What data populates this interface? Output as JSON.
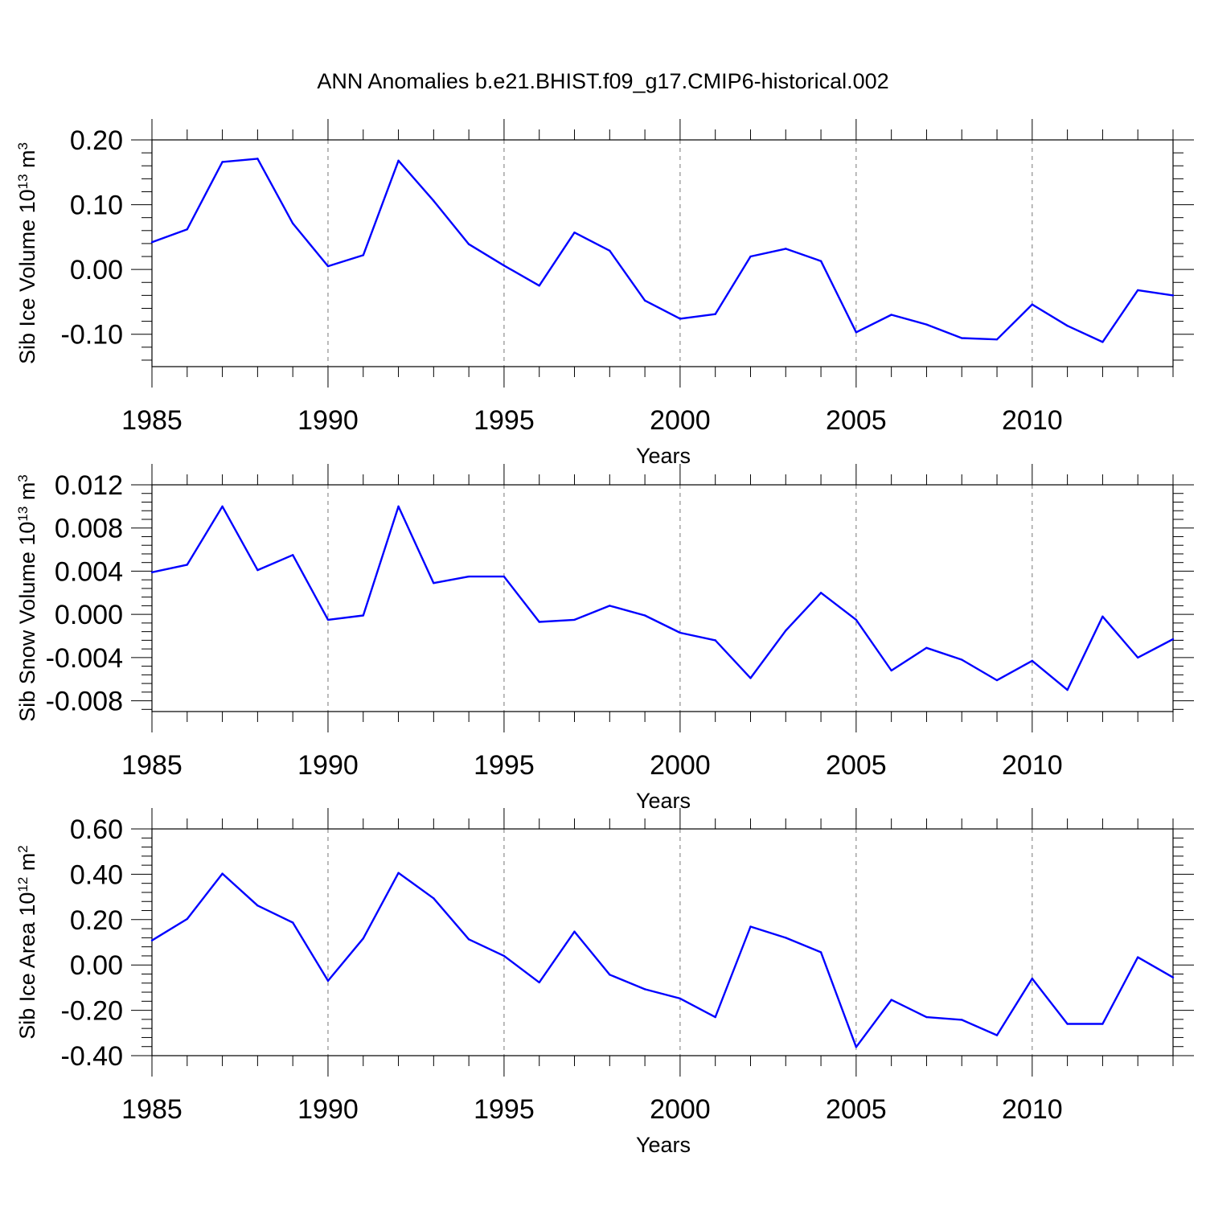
{
  "figure": {
    "title": "ANN Anomalies b.e21.BHIST.f09_g17.CMIP6-historical.002"
  },
  "chart_data": [
    {
      "type": "line",
      "xlabel": "Years",
      "ylabel": "Sib Ice Volume 10",
      "ylabel_exp": "13",
      "ylabel_unit": " m",
      "ylabel_unit_exp": "3",
      "xlim": [
        1985,
        2014
      ],
      "ylim": [
        -0.15,
        0.2
      ],
      "x_ticks": [
        1985,
        1990,
        1995,
        2000,
        2005,
        2010
      ],
      "y_ticks": [
        0.2,
        0.1,
        0.0,
        -0.1
      ],
      "y_tick_labels": [
        "0.20",
        "0.10",
        "0.00",
        "-0.10"
      ],
      "x_gridlines": [
        1990,
        1995,
        2000,
        2005,
        2010
      ],
      "line_color": "#0000ff",
      "x": [
        1985,
        1986,
        1987,
        1988,
        1989,
        1990,
        1991,
        1992,
        1993,
        1994,
        1995,
        1996,
        1997,
        1998,
        1999,
        2000,
        2001,
        2002,
        2003,
        2004,
        2005,
        2006,
        2007,
        2008,
        2009,
        2010,
        2011,
        2012,
        2013,
        2014
      ],
      "values": [
        0.042,
        0.062,
        0.166,
        0.171,
        0.071,
        0.005,
        0.022,
        0.168,
        0.106,
        0.039,
        0.006,
        -0.025,
        0.057,
        0.029,
        -0.048,
        -0.076,
        -0.069,
        0.02,
        0.032,
        0.013,
        -0.097,
        -0.07,
        -0.085,
        -0.106,
        -0.108,
        -0.054,
        -0.087,
        -0.112,
        -0.032,
        -0.04
      ]
    },
    {
      "type": "line",
      "xlabel": "Years",
      "ylabel": "Sib Snow Volume 10",
      "ylabel_exp": "13",
      "ylabel_unit": " m",
      "ylabel_unit_exp": "3",
      "xlim": [
        1985,
        2014
      ],
      "ylim": [
        -0.009,
        0.012
      ],
      "x_ticks": [
        1985,
        1990,
        1995,
        2000,
        2005,
        2010
      ],
      "y_ticks": [
        0.012,
        0.008,
        0.004,
        0.0,
        -0.004,
        -0.008
      ],
      "y_tick_labels": [
        "0.012",
        "0.008",
        "0.004",
        "0.000",
        "-0.004",
        "-0.008"
      ],
      "x_gridlines": [
        1990,
        1995,
        2000,
        2005,
        2010
      ],
      "line_color": "#0000ff",
      "x": [
        1985,
        1986,
        1987,
        1988,
        1989,
        1990,
        1991,
        1992,
        1993,
        1994,
        1995,
        1996,
        1997,
        1998,
        1999,
        2000,
        2001,
        2002,
        2003,
        2004,
        2005,
        2006,
        2007,
        2008,
        2009,
        2010,
        2011,
        2012,
        2013,
        2014
      ],
      "values": [
        0.0039,
        0.0046,
        0.01,
        0.0041,
        0.0055,
        -0.0005,
        -0.0001,
        0.01,
        0.0029,
        0.0035,
        0.0035,
        -0.0007,
        -0.0005,
        0.0008,
        -0.0001,
        -0.0017,
        -0.0024,
        -0.0059,
        -0.0015,
        0.002,
        -0.0005,
        -0.0052,
        -0.0031,
        -0.0042,
        -0.0061,
        -0.0043,
        -0.007,
        -0.0002,
        -0.004,
        -0.0023
      ]
    },
    {
      "type": "line",
      "xlabel": "Years",
      "ylabel": "Sib Ice Area 10",
      "ylabel_exp": "12",
      "ylabel_unit": " m",
      "ylabel_unit_exp": "2",
      "xlim": [
        1985,
        2014
      ],
      "ylim": [
        -0.4,
        0.6
      ],
      "x_ticks": [
        1985,
        1990,
        1995,
        2000,
        2005,
        2010
      ],
      "y_ticks": [
        0.6,
        0.4,
        0.2,
        0.0,
        -0.2,
        -0.4
      ],
      "y_tick_labels": [
        "0.60",
        "0.40",
        "0.20",
        "0.00",
        "-0.20",
        "-0.40"
      ],
      "x_gridlines": [
        1990,
        1995,
        2000,
        2005,
        2010
      ],
      "line_color": "#0000ff",
      "x": [
        1985,
        1986,
        1987,
        1988,
        1989,
        1990,
        1991,
        1992,
        1993,
        1994,
        1995,
        1996,
        1997,
        1998,
        1999,
        2000,
        2001,
        2002,
        2003,
        2004,
        2005,
        2006,
        2007,
        2008,
        2009,
        2010,
        2011,
        2012,
        2013,
        2014
      ],
      "values": [
        0.108,
        0.203,
        0.403,
        0.262,
        0.187,
        -0.07,
        0.117,
        0.406,
        0.294,
        0.113,
        0.04,
        -0.077,
        0.147,
        -0.043,
        -0.107,
        -0.148,
        -0.23,
        0.169,
        0.12,
        0.056,
        -0.362,
        -0.154,
        -0.23,
        -0.242,
        -0.31,
        -0.06,
        -0.26,
        -0.26,
        0.034,
        -0.055
      ]
    }
  ]
}
